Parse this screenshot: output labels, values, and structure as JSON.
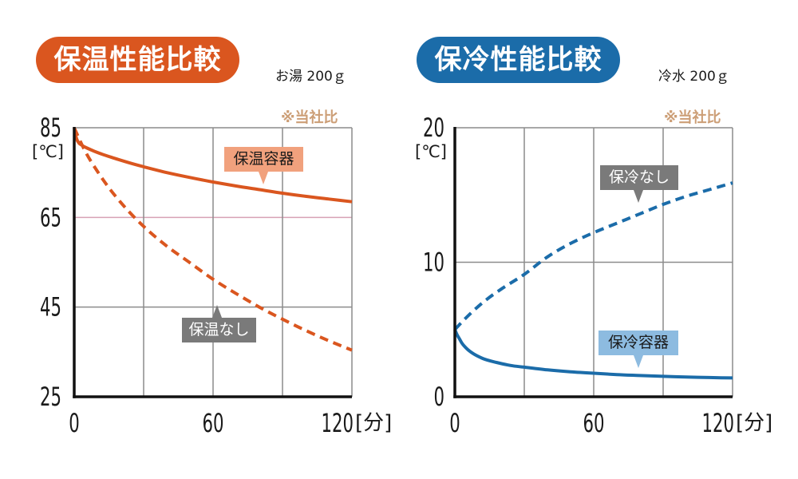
{
  "colors": {
    "grid": "#8C8C8C",
    "reference_line": "#D7A2B5",
    "axis": "#111111",
    "note_text": "#CC9E76",
    "tag_neutral": "#7A7A7A",
    "tag_heat": "#F1A17D",
    "tag_cold": "#8DBBE0"
  },
  "chart_data": [
    {
      "type": "line",
      "title": "保温性能比較",
      "subtitle": "お湯 200ｇ",
      "note": "※当社比",
      "accent_color": "#DA561F",
      "ylabel": "[℃]",
      "xlabel": "[分]",
      "xlim": [
        0,
        120
      ],
      "ylim": [
        25,
        85
      ],
      "yticks": [
        85,
        65,
        45,
        25
      ],
      "ytick_labels": [
        "85",
        "65",
        "45",
        "25"
      ],
      "xticks": [
        0,
        60,
        120
      ],
      "xtick_labels": [
        "0",
        "60",
        "120"
      ],
      "x_gridlines": [
        30,
        60,
        90,
        120
      ],
      "grid": true,
      "reference_y": 65,
      "series": [
        {
          "name": "保温容器",
          "line_style": "solid",
          "color": "#DA561F",
          "x": [
            0,
            1,
            2,
            3,
            5,
            8,
            12,
            18,
            25,
            30,
            40,
            50,
            60,
            70,
            80,
            90,
            100,
            110,
            120
          ],
          "y": [
            85,
            82.6,
            81.6,
            81.2,
            80.6,
            79.9,
            79.1,
            78.1,
            77.0,
            76.3,
            75.0,
            73.9,
            72.9,
            72.0,
            71.2,
            70.4,
            69.7,
            69.1,
            68.5
          ]
        },
        {
          "name": "保温なし",
          "line_style": "dashed",
          "color": "#DA561F",
          "x": [
            0,
            5,
            10,
            15,
            20,
            30,
            40,
            50,
            60,
            70,
            80,
            90,
            100,
            110,
            120
          ],
          "y": [
            85,
            79.5,
            75.3,
            71.6,
            68.4,
            63.0,
            58.6,
            54.9,
            51.2,
            48.0,
            45.0,
            42.3,
            39.8,
            37.5,
            35.4
          ]
        }
      ]
    },
    {
      "type": "line",
      "title": "保冷性能比較",
      "subtitle": "冷水 200ｇ",
      "note": "※当社比",
      "accent_color": "#1B6CA9",
      "ylabel": "[℃]",
      "xlabel": "[分]",
      "xlim": [
        0,
        120
      ],
      "ylim": [
        0,
        20
      ],
      "yticks": [
        20,
        10,
        0
      ],
      "ytick_labels": [
        "20",
        "10",
        "0"
      ],
      "xticks": [
        0,
        60,
        120
      ],
      "xtick_labels": [
        "0",
        "60",
        "120"
      ],
      "x_gridlines": [
        30,
        60,
        90,
        120
      ],
      "grid": true,
      "series": [
        {
          "name": "保冷容器",
          "line_style": "solid",
          "color": "#1B6CA9",
          "x": [
            0,
            1,
            2,
            3,
            5,
            8,
            12,
            18,
            25,
            30,
            40,
            50,
            60,
            70,
            80,
            90,
            100,
            110,
            120
          ],
          "y": [
            5.0,
            4.6,
            4.3,
            4.0,
            3.6,
            3.2,
            2.85,
            2.55,
            2.3,
            2.2,
            2.0,
            1.85,
            1.75,
            1.65,
            1.58,
            1.52,
            1.47,
            1.43,
            1.4
          ]
        },
        {
          "name": "保冷なし",
          "line_style": "dashed",
          "color": "#1B6CA9",
          "x": [
            0,
            5,
            10,
            15,
            20,
            30,
            40,
            50,
            60,
            70,
            80,
            90,
            100,
            110,
            120
          ],
          "y": [
            5.0,
            5.9,
            6.7,
            7.4,
            8.0,
            9.1,
            10.4,
            11.4,
            12.2,
            12.9,
            13.6,
            14.3,
            14.9,
            15.4,
            15.9
          ]
        }
      ]
    }
  ]
}
